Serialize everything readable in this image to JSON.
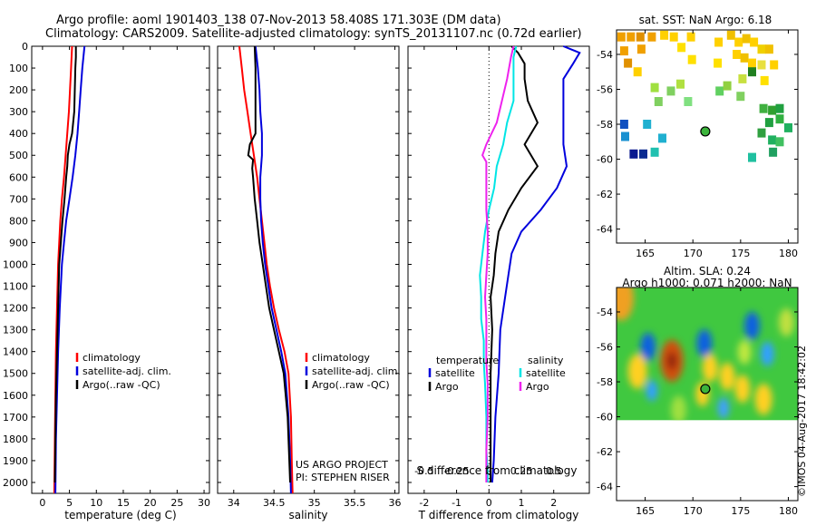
{
  "header": {
    "line1": "Argo profile: aoml 1901403_138 07-Nov-2013 58.408S 171.303E (DM data)",
    "line2": "Climatology: CARS2009. Satellite-adjusted climatology: synTS_20131107.nc (0.72d earlier)"
  },
  "credit": {
    "project": "US ARGO PROJECT",
    "pi": "PI: STEPHEN RISER",
    "watermark": "©IMOS 04-Aug-2017 18:42:02"
  },
  "colors": {
    "climatology": "#ff0000",
    "satellite": "#0000dd",
    "argo": "#000000",
    "s_satellite": "#00e5e5",
    "s_argo": "#ee22ee"
  },
  "chart_data": [
    {
      "id": "temperature",
      "type": "line",
      "xlabel": "temperature (deg C)",
      "ylabel": "",
      "xlim": [
        -2,
        31
      ],
      "ylim": [
        2050,
        0
      ],
      "xticks": [
        0,
        5,
        10,
        15,
        20,
        25,
        30
      ],
      "yticks": [
        0,
        100,
        200,
        300,
        400,
        500,
        600,
        700,
        800,
        900,
        1000,
        1100,
        1200,
        1300,
        1400,
        1500,
        1600,
        1700,
        1800,
        1900,
        2000
      ],
      "legend": [
        "climatology",
        "satellite-adj. clim.",
        "Argo(..raw -QC)"
      ],
      "series": [
        {
          "name": "climatology",
          "color": "climatology",
          "depth": [
            0,
            100,
            200,
            300,
            400,
            500,
            600,
            700,
            800,
            900,
            1000,
            1200,
            1400,
            1600,
            1800,
            2050
          ],
          "values": [
            5.5,
            5.3,
            5.1,
            4.9,
            4.6,
            4.3,
            4.0,
            3.6,
            3.3,
            3.1,
            2.9,
            2.7,
            2.5,
            2.4,
            2.3,
            2.2
          ]
        },
        {
          "name": "satellite-adj. clim.",
          "color": "satellite",
          "depth": [
            0,
            50,
            100,
            200,
            300,
            400,
            500,
            600,
            700,
            800,
            900,
            1000,
            1200,
            1400,
            1600,
            1800,
            2050
          ],
          "values": [
            7.8,
            7.6,
            7.4,
            7.1,
            6.8,
            6.5,
            6.1,
            5.6,
            5.0,
            4.4,
            4.0,
            3.6,
            3.2,
            2.9,
            2.7,
            2.5,
            2.4
          ]
        },
        {
          "name": "Argo(..raw -QC)",
          "color": "argo",
          "depth": [
            0,
            50,
            100,
            200,
            300,
            400,
            450,
            500,
            550,
            600,
            700,
            800,
            900,
            1000,
            1200,
            1400,
            1600,
            1800,
            2000
          ],
          "values": [
            6.2,
            6.2,
            6.1,
            6.0,
            5.9,
            5.5,
            5.0,
            4.7,
            4.6,
            4.4,
            4.1,
            3.7,
            3.4,
            3.1,
            2.9,
            2.7,
            2.5,
            2.4,
            2.3
          ]
        }
      ]
    },
    {
      "id": "salinity",
      "type": "line",
      "xlabel": "salinity",
      "ylabel": "",
      "xlim": [
        33.8,
        36.05
      ],
      "ylim": [
        2050,
        0
      ],
      "xticks": [
        34,
        34.5,
        35,
        35.5,
        36
      ],
      "xticklabels": [
        "34",
        "34.5",
        "35",
        "35.5",
        "36"
      ],
      "legend": [
        "climatology",
        "satellite-adj. clim.",
        "Argo(..raw -QC)"
      ],
      "series": [
        {
          "name": "climatology",
          "color": "climatology",
          "depth": [
            0,
            100,
            200,
            300,
            400,
            500,
            600,
            700,
            800,
            900,
            1000,
            1100,
            1200,
            1300,
            1400,
            1500,
            1700,
            1900,
            2050
          ],
          "values": [
            34.07,
            34.1,
            34.13,
            34.17,
            34.21,
            34.25,
            34.29,
            34.32,
            34.35,
            34.38,
            34.41,
            34.45,
            34.5,
            34.56,
            34.63,
            34.68,
            34.71,
            34.72,
            34.73
          ]
        },
        {
          "name": "satellite-adj. clim.",
          "color": "satellite",
          "depth": [
            0,
            100,
            200,
            300,
            400,
            500,
            600,
            700,
            800,
            900,
            1000,
            1100,
            1200,
            1300,
            1400,
            1500,
            1700,
            1900,
            2050
          ],
          "values": [
            34.27,
            34.3,
            34.32,
            34.33,
            34.35,
            34.35,
            34.33,
            34.33,
            34.34,
            34.36,
            34.39,
            34.43,
            34.47,
            34.53,
            34.59,
            34.64,
            34.68,
            34.7,
            34.71
          ]
        },
        {
          "name": "Argo(..raw -QC)",
          "color": "argo",
          "depth": [
            0,
            100,
            200,
            300,
            400,
            450,
            500,
            520,
            560,
            600,
            700,
            800,
            900,
            1000,
            1100,
            1200,
            1300,
            1400,
            1500,
            1700,
            1900,
            2000
          ],
          "values": [
            34.26,
            34.27,
            34.27,
            34.27,
            34.27,
            34.2,
            34.18,
            34.24,
            34.23,
            34.24,
            34.26,
            34.29,
            34.32,
            34.36,
            34.4,
            34.44,
            34.5,
            34.56,
            34.62,
            34.67,
            34.69,
            34.7
          ]
        }
      ]
    },
    {
      "id": "difference",
      "type": "line",
      "xlabel": "T difference from climatology",
      "xlabel2": "S difference from climatology",
      "xlim": [
        -2.5,
        3.1
      ],
      "ylim": [
        2050,
        0
      ],
      "xticks": [
        -2,
        -1,
        0,
        1,
        2
      ],
      "xticks2": [
        -0.5,
        -0.25,
        0,
        0.25,
        0.5
      ],
      "xticks2labels": [
        "-0.5",
        "-0.25",
        "0",
        "0.25",
        "0.5"
      ],
      "legend_title_t": "temperature",
      "legend_title_s": "salinity",
      "legend": [
        "satellite",
        "Argo",
        "satellite",
        "Argo"
      ],
      "series": [
        {
          "name": "satellite",
          "kind": "T",
          "color": "satellite",
          "depth": [
            0,
            30,
            80,
            150,
            250,
            350,
            450,
            550,
            650,
            750,
            850,
            950,
            1050,
            1150,
            1300,
            1500,
            1700,
            1900,
            2000
          ],
          "values": [
            2.3,
            2.8,
            2.6,
            2.3,
            2.3,
            2.3,
            2.3,
            2.4,
            2.1,
            1.6,
            1.0,
            0.7,
            0.6,
            0.5,
            0.35,
            0.3,
            0.2,
            0.15,
            0.1
          ]
        },
        {
          "name": "Argo",
          "kind": "T",
          "color": "argo",
          "depth": [
            0,
            30,
            80,
            150,
            250,
            350,
            450,
            550,
            650,
            750,
            850,
            950,
            1050,
            1150,
            1300,
            1500,
            1700,
            1900,
            2000
          ],
          "values": [
            0.7,
            0.9,
            1.1,
            1.1,
            1.2,
            1.5,
            1.1,
            1.5,
            1.0,
            0.6,
            0.3,
            0.2,
            0.15,
            0.05,
            0.1,
            0.05,
            0.05,
            0.05,
            0.05
          ]
        },
        {
          "name": "satellite",
          "kind": "S",
          "color": "s_satellite",
          "depth": [
            0,
            50,
            150,
            250,
            350,
            450,
            550,
            650,
            750,
            850,
            950,
            1050,
            1150,
            1250,
            1350,
            1450,
            1550,
            1700,
            1850,
            1950,
            2000
          ],
          "values": [
            0.21,
            0.19,
            0.19,
            0.19,
            0.14,
            0.11,
            0.06,
            0.04,
            0.0,
            -0.03,
            -0.05,
            -0.07,
            -0.06,
            -0.06,
            -0.04,
            -0.04,
            -0.03,
            -0.02,
            -0.02,
            -0.01,
            -0.01
          ]
        },
        {
          "name": "Argo",
          "kind": "S",
          "color": "s_argo",
          "depth": [
            0,
            50,
            150,
            250,
            350,
            450,
            500,
            530,
            560,
            650,
            750,
            850,
            950,
            1050,
            1150,
            1250,
            1350,
            1450,
            1550,
            1700,
            1850,
            2000
          ],
          "values": [
            0.19,
            0.17,
            0.14,
            0.1,
            0.06,
            -0.02,
            -0.05,
            -0.02,
            -0.02,
            -0.02,
            -0.02,
            -0.01,
            -0.01,
            -0.02,
            -0.03,
            -0.02,
            -0.02,
            -0.02,
            -0.01,
            -0.01,
            -0.02,
            -0.02
          ]
        }
      ]
    },
    {
      "id": "sst_map",
      "type": "scatter",
      "title": "sat. SST: NaN Argo: 6.18",
      "xlim": [
        162,
        181
      ],
      "ylim": [
        -64.8,
        -52.6
      ],
      "xticks": [
        165,
        170,
        175,
        180
      ],
      "yticks": [
        -54,
        -56,
        -58,
        -60,
        -62,
        -64
      ],
      "float_position": [
        171.3,
        -58.41
      ],
      "points": [
        {
          "lon": 162.5,
          "lat": -53.0,
          "c": "#f0a000"
        },
        {
          "lon": 163.5,
          "lat": -53.0,
          "c": "#f0a000"
        },
        {
          "lon": 164.5,
          "lat": -53.0,
          "c": "#e09000"
        },
        {
          "lon": 165.7,
          "lat": -53.0,
          "c": "#f0a000"
        },
        {
          "lon": 162.8,
          "lat": -53.8,
          "c": "#f0a000"
        },
        {
          "lon": 163.2,
          "lat": -54.5,
          "c": "#e09000"
        },
        {
          "lon": 164.6,
          "lat": -53.7,
          "c": "#f0a000"
        },
        {
          "lon": 164.2,
          "lat": -55.0,
          "c": "#ffd000"
        },
        {
          "lon": 167.0,
          "lat": -52.9,
          "c": "#ffd000"
        },
        {
          "lon": 168.0,
          "lat": -53.0,
          "c": "#ffd000"
        },
        {
          "lon": 168.8,
          "lat": -53.6,
          "c": "#ffe000"
        },
        {
          "lon": 169.8,
          "lat": -53.0,
          "c": "#ffd000"
        },
        {
          "lon": 169.9,
          "lat": -54.3,
          "c": "#ffe000"
        },
        {
          "lon": 172.7,
          "lat": -53.3,
          "c": "#ffd000"
        },
        {
          "lon": 172.6,
          "lat": -54.5,
          "c": "#ffe000"
        },
        {
          "lon": 174.0,
          "lat": -52.9,
          "c": "#f0c000"
        },
        {
          "lon": 174.8,
          "lat": -53.3,
          "c": "#ffd000"
        },
        {
          "lon": 175.6,
          "lat": -53.1,
          "c": "#f0c000"
        },
        {
          "lon": 176.4,
          "lat": -53.3,
          "c": "#ffd000"
        },
        {
          "lon": 177.2,
          "lat": -53.7,
          "c": "#f0d000"
        },
        {
          "lon": 174.6,
          "lat": -54.0,
          "c": "#ffd000"
        },
        {
          "lon": 175.4,
          "lat": -54.2,
          "c": "#f0c000"
        },
        {
          "lon": 176.2,
          "lat": -54.5,
          "c": "#ffd000"
        },
        {
          "lon": 177.2,
          "lat": -54.6,
          "c": "#e8e040"
        },
        {
          "lon": 178.0,
          "lat": -53.7,
          "c": "#f0c000"
        },
        {
          "lon": 178.5,
          "lat": -54.6,
          "c": "#ffd000"
        },
        {
          "lon": 177.5,
          "lat": -55.5,
          "c": "#ffe000"
        },
        {
          "lon": 175.2,
          "lat": -55.4,
          "c": "#c8e040"
        },
        {
          "lon": 176.2,
          "lat": -55.0,
          "c": "#208020"
        },
        {
          "lon": 166.0,
          "lat": -55.9,
          "c": "#a0e040"
        },
        {
          "lon": 166.4,
          "lat": -56.7,
          "c": "#80d060"
        },
        {
          "lon": 167.7,
          "lat": -56.1,
          "c": "#80d060"
        },
        {
          "lon": 168.7,
          "lat": -55.7,
          "c": "#b0e040"
        },
        {
          "lon": 169.5,
          "lat": -56.7,
          "c": "#80e080"
        },
        {
          "lon": 172.8,
          "lat": -56.1,
          "c": "#60d060"
        },
        {
          "lon": 173.6,
          "lat": -55.8,
          "c": "#90d040"
        },
        {
          "lon": 175.0,
          "lat": -56.4,
          "c": "#80d060"
        },
        {
          "lon": 177.4,
          "lat": -57.1,
          "c": "#40b040"
        },
        {
          "lon": 178.3,
          "lat": -57.2,
          "c": "#30a030"
        },
        {
          "lon": 179.1,
          "lat": -57.1,
          "c": "#20a040"
        },
        {
          "lon": 178.0,
          "lat": -57.9,
          "c": "#20a040"
        },
        {
          "lon": 179.1,
          "lat": -57.7,
          "c": "#30b040"
        },
        {
          "lon": 180.0,
          "lat": -58.2,
          "c": "#20b060"
        },
        {
          "lon": 177.2,
          "lat": -58.5,
          "c": "#30a040"
        },
        {
          "lon": 178.3,
          "lat": -58.9,
          "c": "#20b060"
        },
        {
          "lon": 179.1,
          "lat": -59.0,
          "c": "#40c060"
        },
        {
          "lon": 178.4,
          "lat": -59.6,
          "c": "#20a060"
        },
        {
          "lon": 176.2,
          "lat": -59.9,
          "c": "#20c0a0"
        },
        {
          "lon": 162.8,
          "lat": -58.0,
          "c": "#1050c0"
        },
        {
          "lon": 162.9,
          "lat": -58.7,
          "c": "#1890d0"
        },
        {
          "lon": 165.2,
          "lat": -58.0,
          "c": "#20b0d0"
        },
        {
          "lon": 166.8,
          "lat": -58.8,
          "c": "#20b0d0"
        },
        {
          "lon": 163.8,
          "lat": -59.7,
          "c": "#0a1a90"
        },
        {
          "lon": 164.8,
          "lat": -59.7,
          "c": "#0a2a90"
        },
        {
          "lon": 166.0,
          "lat": -59.6,
          "c": "#20c0b0"
        }
      ]
    },
    {
      "id": "sla_map",
      "type": "heatmap",
      "title_line1": "Altim. SLA: 0.24",
      "title_line2": "Argo h1000: 0.071 h2000: NaN",
      "xlim": [
        162,
        181
      ],
      "ylim": [
        -64.8,
        -52.6
      ],
      "xticks": [
        165,
        170,
        175,
        180
      ],
      "yticks": [
        -54,
        -56,
        -58,
        -60,
        -62,
        -64
      ],
      "float_position": [
        171.3,
        -58.41
      ],
      "data_lat_range": [
        -60.2,
        -52.6
      ],
      "base_color": "#40c840",
      "blobs": [
        {
          "lon": 162.5,
          "lat": -53.2,
          "r": 1.3,
          "c": "#f0a020"
        },
        {
          "lon": 165.3,
          "lat": -56.0,
          "r": 0.8,
          "c": "#1060e0"
        },
        {
          "lon": 171.2,
          "lat": -55.8,
          "r": 0.8,
          "c": "#1060e0"
        },
        {
          "lon": 176.2,
          "lat": -54.8,
          "r": 0.8,
          "c": "#1060e0"
        },
        {
          "lon": 177.8,
          "lat": -56.4,
          "r": 0.7,
          "c": "#30a0ff"
        },
        {
          "lon": 167.8,
          "lat": -56.8,
          "r": 1.2,
          "c": "#d05010"
        },
        {
          "lon": 167.8,
          "lat": -56.8,
          "r": 0.5,
          "c": "#902010"
        },
        {
          "lon": 164.2,
          "lat": -57.4,
          "r": 1.0,
          "c": "#ffd020"
        },
        {
          "lon": 171.8,
          "lat": -57.2,
          "r": 0.8,
          "c": "#ffd020"
        },
        {
          "lon": 173.6,
          "lat": -57.7,
          "r": 0.8,
          "c": "#ffd020"
        },
        {
          "lon": 175.4,
          "lat": -56.3,
          "r": 0.7,
          "c": "#c0e840"
        },
        {
          "lon": 175.2,
          "lat": -58.4,
          "r": 0.8,
          "c": "#ffd020"
        },
        {
          "lon": 177.4,
          "lat": -59.0,
          "r": 0.9,
          "c": "#ffd020"
        },
        {
          "lon": 165.7,
          "lat": -58.5,
          "r": 0.6,
          "c": "#30a0ff"
        },
        {
          "lon": 171.0,
          "lat": -58.7,
          "r": 0.7,
          "c": "#ffd020"
        },
        {
          "lon": 168.5,
          "lat": -59.6,
          "r": 0.8,
          "c": "#a0e040"
        },
        {
          "lon": 173.2,
          "lat": -59.5,
          "r": 0.6,
          "c": "#40a0ff"
        },
        {
          "lon": 179.8,
          "lat": -54.6,
          "r": 0.8,
          "c": "#c0e040"
        }
      ]
    }
  ]
}
